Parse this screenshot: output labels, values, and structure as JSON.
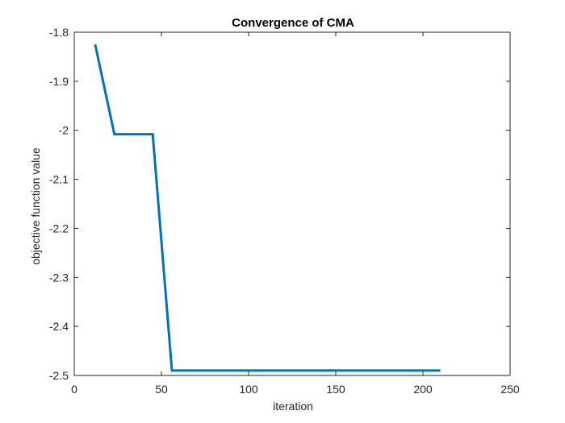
{
  "chart_data": {
    "type": "line",
    "title": "Convergence of CMA",
    "xlabel": "iteration",
    "ylabel": "objective function value",
    "xlim": [
      0,
      250
    ],
    "ylim": [
      -2.5,
      -1.8
    ],
    "xticks": [
      0,
      50,
      100,
      150,
      200,
      250
    ],
    "yticks": [
      -1.8,
      -1.9,
      -2.0,
      -2.1,
      -2.2,
      -2.3,
      -2.4,
      -2.5
    ],
    "xtick_labels": [
      "0",
      "50",
      "100",
      "150",
      "200",
      "250"
    ],
    "ytick_labels": [
      "-1.8",
      "-1.9",
      "-2",
      "-2.1",
      "-2.2",
      "-2.3",
      "-2.4",
      "-2.5"
    ],
    "grid": false,
    "box": true,
    "series": [
      {
        "color": "#0072BD",
        "x": [
          12,
          23,
          45,
          56,
          210
        ],
        "y": [
          -1.825,
          -2.008,
          -2.008,
          -2.49,
          -2.49
        ]
      }
    ]
  }
}
